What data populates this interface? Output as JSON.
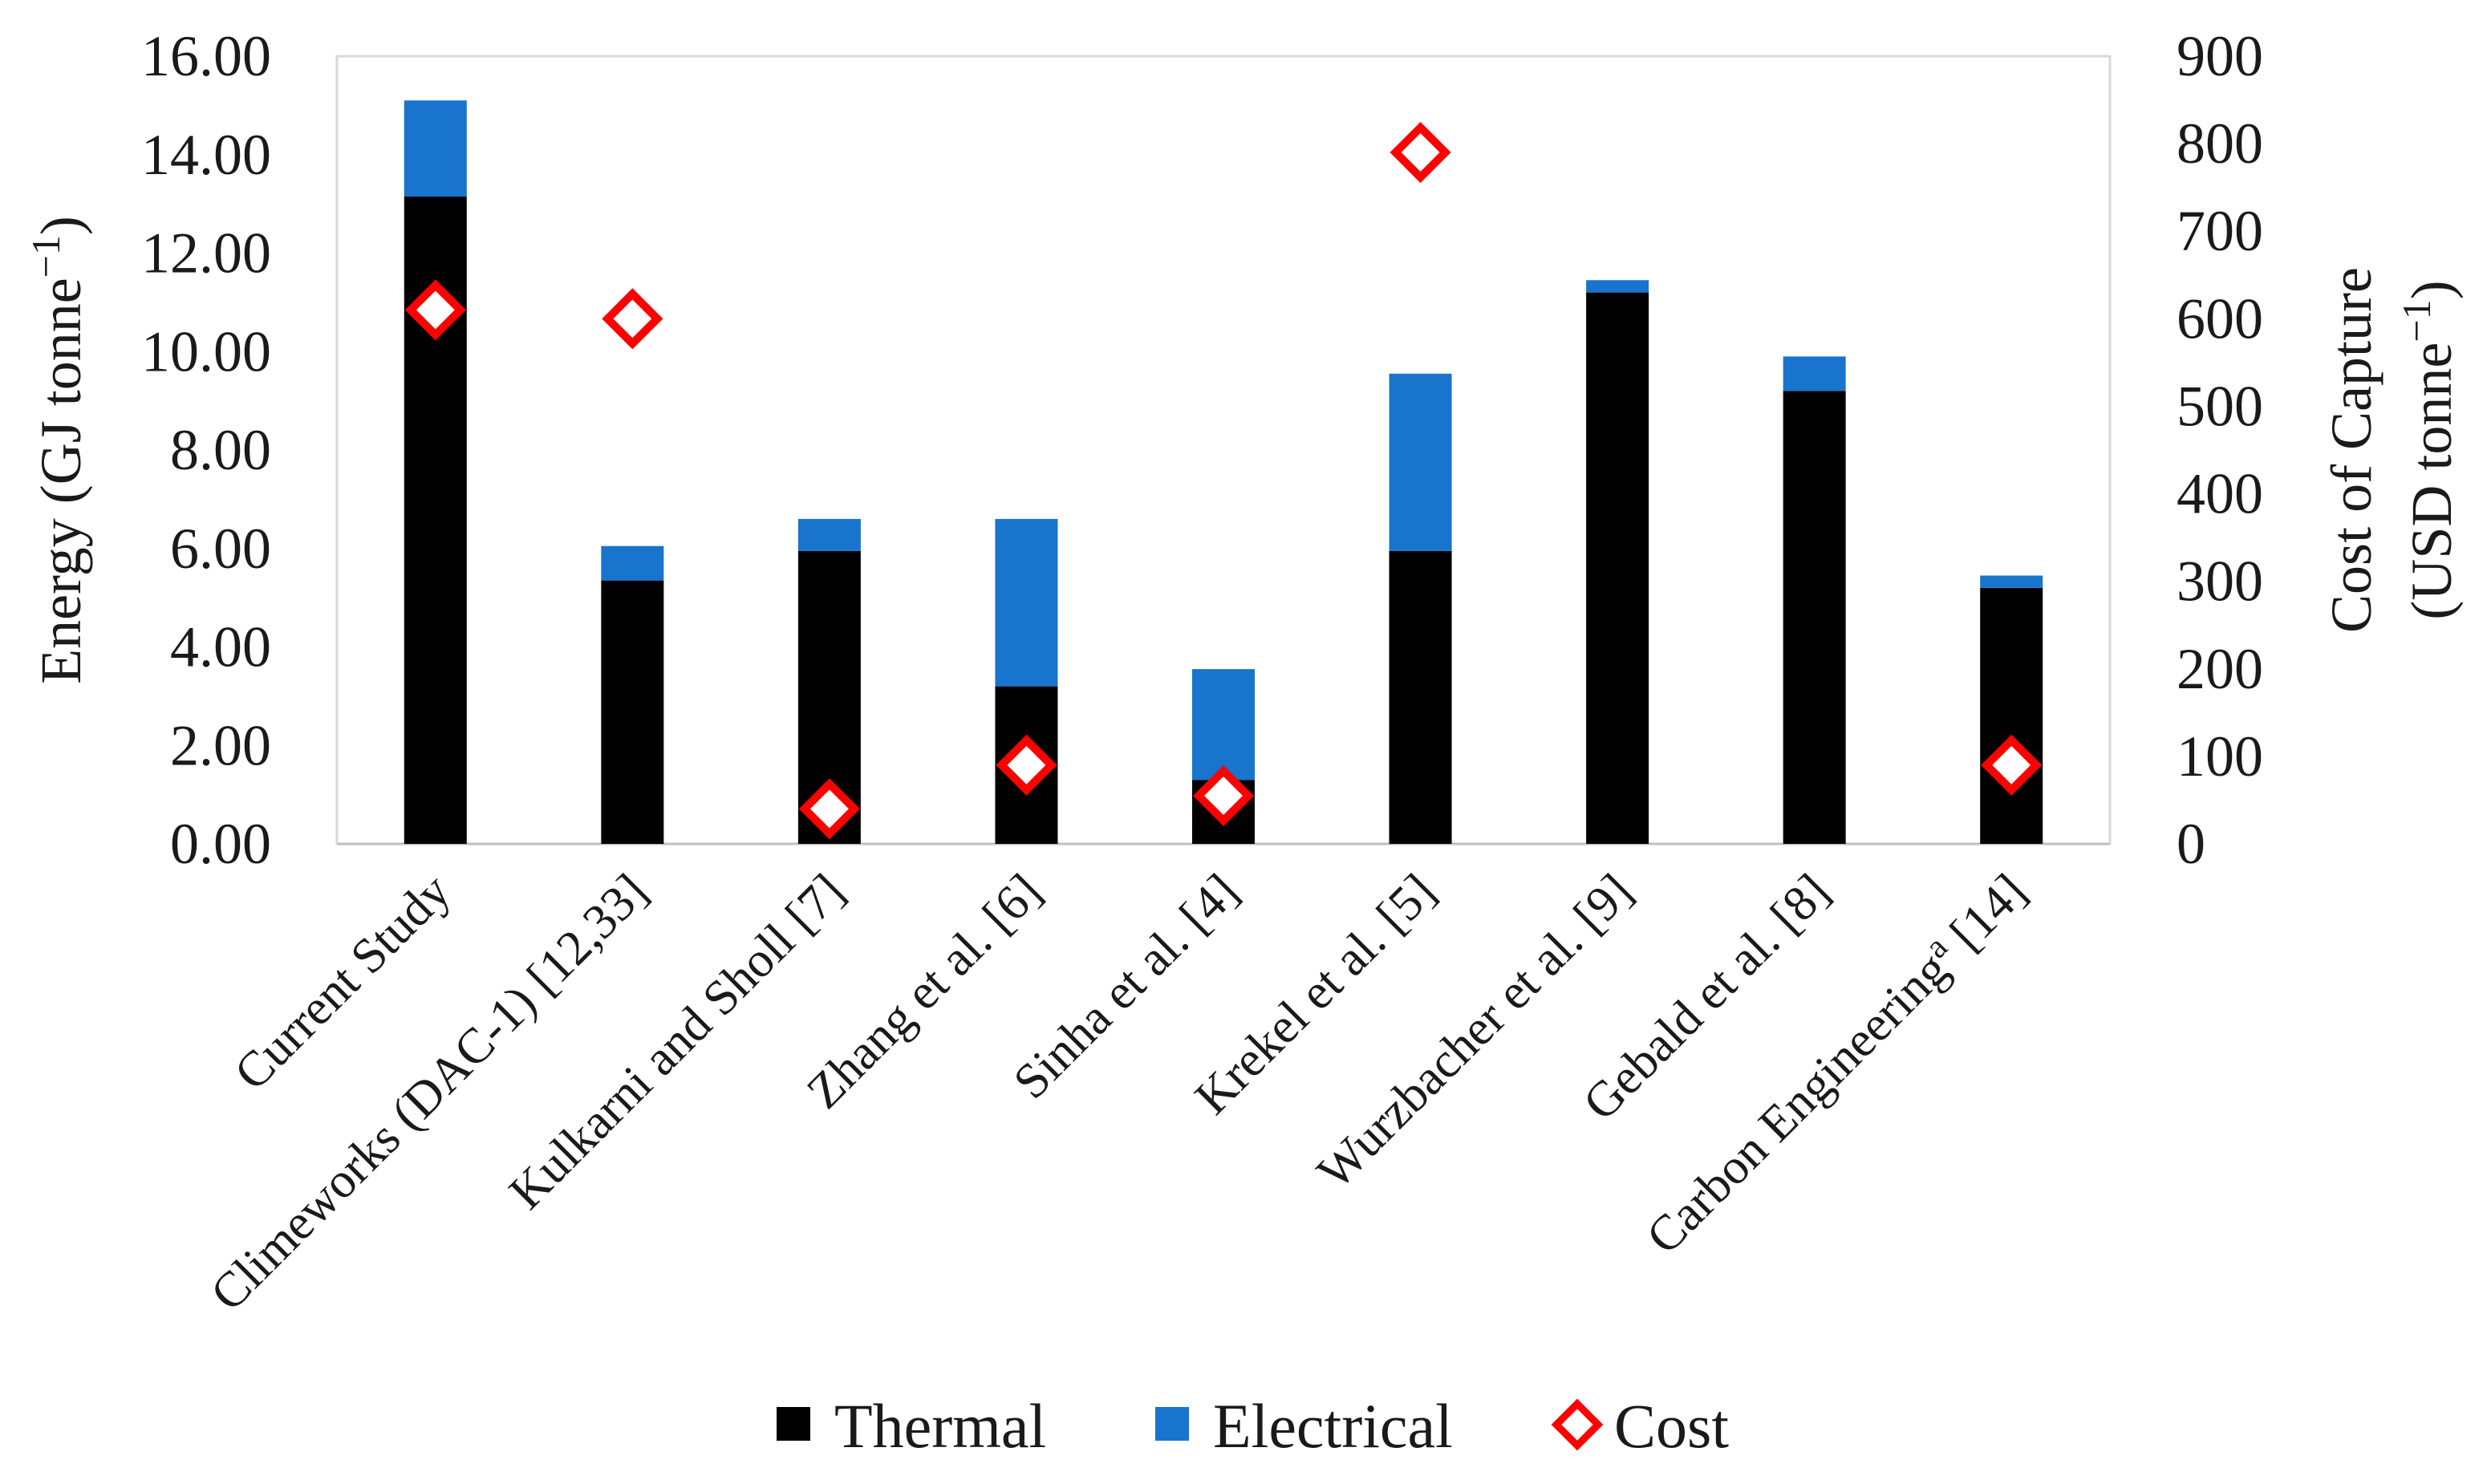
{
  "chart_data": {
    "type": "bar",
    "stacked": true,
    "categories": [
      "Current Study",
      "Climeworks (DAC-1) [12,33]",
      "Kulkarni and Sholl [7]",
      "Zhang et al. [6]",
      "Sinha et al. [4]",
      "Krekel et al. [5]",
      "Wurzbacher et al. [9]",
      "Gebald et al. [8]",
      "Carbon Engineering"
    ],
    "category_suffix_last": {
      "superscript": "a",
      "rest": " [14]"
    },
    "series": [
      {
        "name": "Thermal",
        "axis": "left",
        "color": "#000000",
        "values": [
          13.15,
          5.35,
          5.95,
          3.2,
          1.3,
          5.95,
          11.2,
          9.2,
          5.2
        ]
      },
      {
        "name": "Electrical",
        "axis": "left",
        "color": "#1874cd",
        "values": [
          1.95,
          0.7,
          0.65,
          3.4,
          2.25,
          3.6,
          0.25,
          0.7,
          0.25
        ]
      },
      {
        "name": "Cost",
        "axis": "right",
        "type": "scatter",
        "marker": "diamond",
        "color": "#ff0000",
        "values": [
          610,
          600,
          40,
          90,
          55,
          790,
          null,
          null,
          90
        ]
      }
    ],
    "y_left": {
      "title_main": "Energy (GJ tonne",
      "title_sup": "−1",
      "title_end": ")",
      "min": 0,
      "max": 16,
      "step": 2,
      "tick_labels": [
        "0.00",
        "2.00",
        "4.00",
        "6.00",
        "8.00",
        "10.00",
        "12.00",
        "14.00",
        "16.00"
      ]
    },
    "y_right": {
      "title_line1": "Cost of Capture",
      "title_line2_main": "(USD tonne",
      "title_line2_sup": "−1",
      "title_line2_end": ")",
      "min": 0,
      "max": 900,
      "step": 100,
      "tick_labels": [
        "0",
        "100",
        "200",
        "300",
        "400",
        "500",
        "600",
        "700",
        "800",
        "900"
      ]
    },
    "grid": false,
    "legend": {
      "position": "bottom",
      "entries": [
        "Thermal",
        "Electrical",
        "Cost"
      ]
    }
  }
}
